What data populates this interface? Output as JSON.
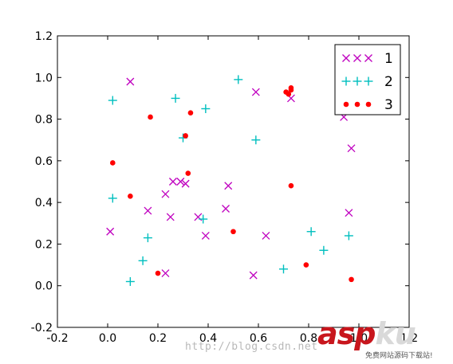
{
  "chart_data": {
    "type": "scatter",
    "xlim": [
      -0.2,
      1.2
    ],
    "ylim": [
      -0.2,
      1.2
    ],
    "x_ticks": [
      "-0.2",
      "0.0",
      "0.2",
      "0.4",
      "0.6",
      "0.8",
      "1.0",
      "1.2"
    ],
    "y_ticks": [
      "-0.2",
      "0.0",
      "0.2",
      "0.4",
      "0.6",
      "0.8",
      "1.0",
      "1.2"
    ],
    "grid": false,
    "legend_position": "top-right",
    "series": [
      {
        "name": "1",
        "marker": "x",
        "color": "#bf00bf",
        "points": [
          [
            0.09,
            0.98
          ],
          [
            0.59,
            0.93
          ],
          [
            0.73,
            0.9
          ],
          [
            0.31,
            0.49
          ],
          [
            0.29,
            0.5
          ],
          [
            0.26,
            0.5
          ],
          [
            0.23,
            0.44
          ],
          [
            0.16,
            0.36
          ],
          [
            0.25,
            0.33
          ],
          [
            0.36,
            0.33
          ],
          [
            0.39,
            0.24
          ],
          [
            0.47,
            0.37
          ],
          [
            0.48,
            0.48
          ],
          [
            0.01,
            0.26
          ],
          [
            0.23,
            0.06
          ],
          [
            0.63,
            0.24
          ],
          [
            0.58,
            0.05
          ],
          [
            0.94,
            0.81
          ],
          [
            0.97,
            0.66
          ],
          [
            0.96,
            0.35
          ]
        ]
      },
      {
        "name": "2",
        "marker": "+",
        "color": "#00bfbf",
        "points": [
          [
            0.02,
            0.89
          ],
          [
            0.27,
            0.9
          ],
          [
            0.52,
            0.99
          ],
          [
            0.39,
            0.85
          ],
          [
            0.3,
            0.71
          ],
          [
            0.59,
            0.7
          ],
          [
            0.02,
            0.42
          ],
          [
            0.38,
            0.32
          ],
          [
            0.16,
            0.23
          ],
          [
            0.14,
            0.12
          ],
          [
            0.09,
            0.02
          ],
          [
            0.7,
            0.08
          ],
          [
            0.81,
            0.26
          ],
          [
            0.86,
            0.17
          ],
          [
            0.96,
            0.24
          ]
        ]
      },
      {
        "name": "3",
        "marker": "o",
        "color": "#ff0000",
        "points": [
          [
            0.73,
            0.94
          ],
          [
            0.73,
            0.95
          ],
          [
            0.71,
            0.93
          ],
          [
            0.72,
            0.92
          ],
          [
            0.17,
            0.81
          ],
          [
            0.33,
            0.83
          ],
          [
            0.31,
            0.72
          ],
          [
            0.02,
            0.59
          ],
          [
            0.32,
            0.54
          ],
          [
            0.09,
            0.43
          ],
          [
            0.73,
            0.48
          ],
          [
            0.5,
            0.26
          ],
          [
            0.2,
            0.06
          ],
          [
            0.79,
            0.1
          ],
          [
            0.97,
            0.03
          ]
        ]
      }
    ]
  },
  "watermark": {
    "url_text": "http://blog.csdn.net",
    "logo_main": "asp",
    "logo_suffix": "ku",
    "logo_sub": "免费网站源码下载站!"
  }
}
